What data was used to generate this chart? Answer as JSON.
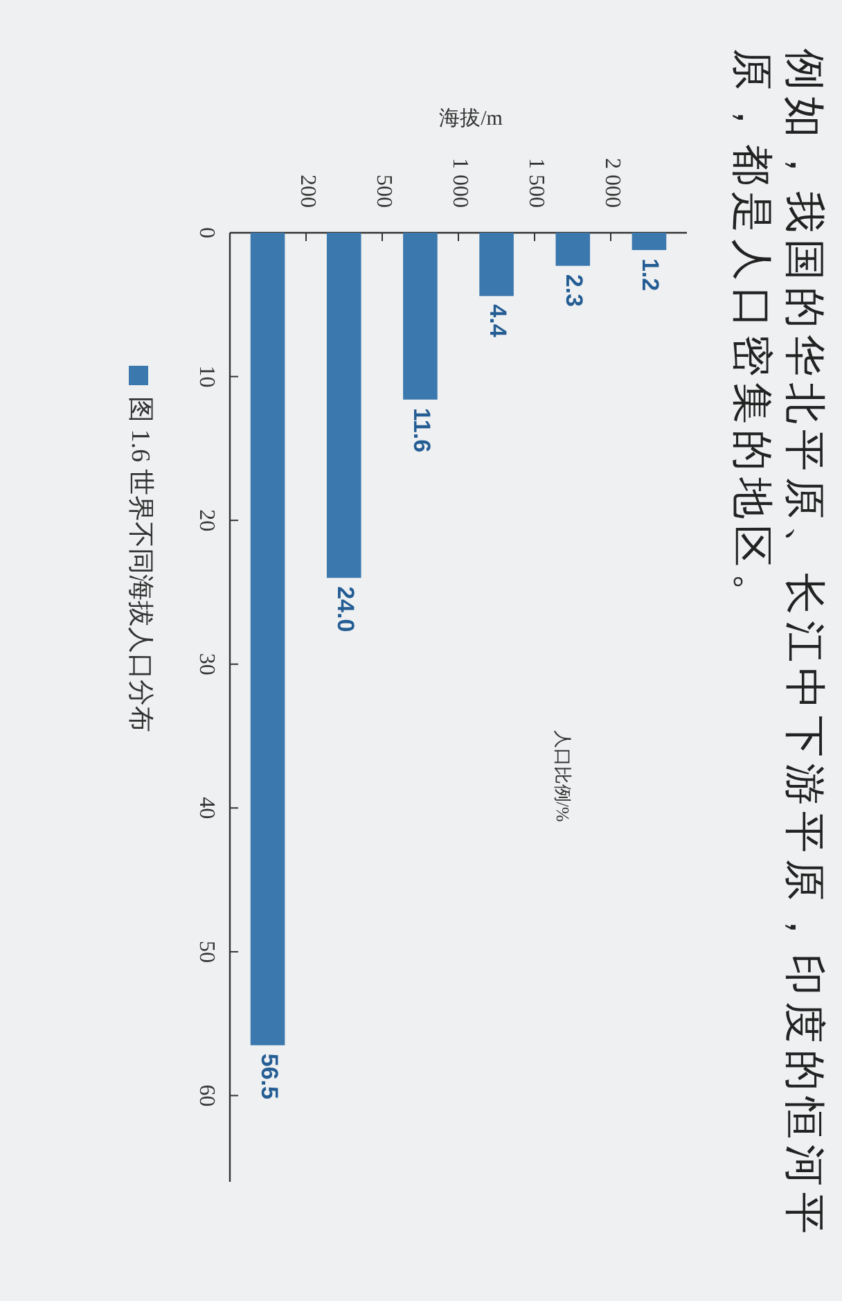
{
  "chart_data": {
    "type": "bar",
    "title": "图 1.6 世界不同海拔人口分布",
    "xlabel": "海拔/m",
    "ylabel": "人口比例/%",
    "categories": [
      null,
      null,
      null,
      null,
      null,
      null
    ],
    "values": [
      56.5,
      24.0,
      11.6,
      4.4,
      2.3,
      1.2
    ],
    "value_labels": [
      "56.5",
      "24.0",
      "11.6",
      "4.4",
      "2.3",
      "1.2"
    ],
    "color": "#3b78ae",
    "ylim": [
      66,
      0
    ],
    "yticks": [
      0,
      10,
      20,
      30,
      40,
      50,
      60
    ],
    "annotations": [
      "例如，我国的华北平原、长江中下游平原，印度的恒河平原，都是人口密集的地区。",
      "200",
      "500",
      "1 000",
      "1 500",
      "2 000"
    ]
  }
}
